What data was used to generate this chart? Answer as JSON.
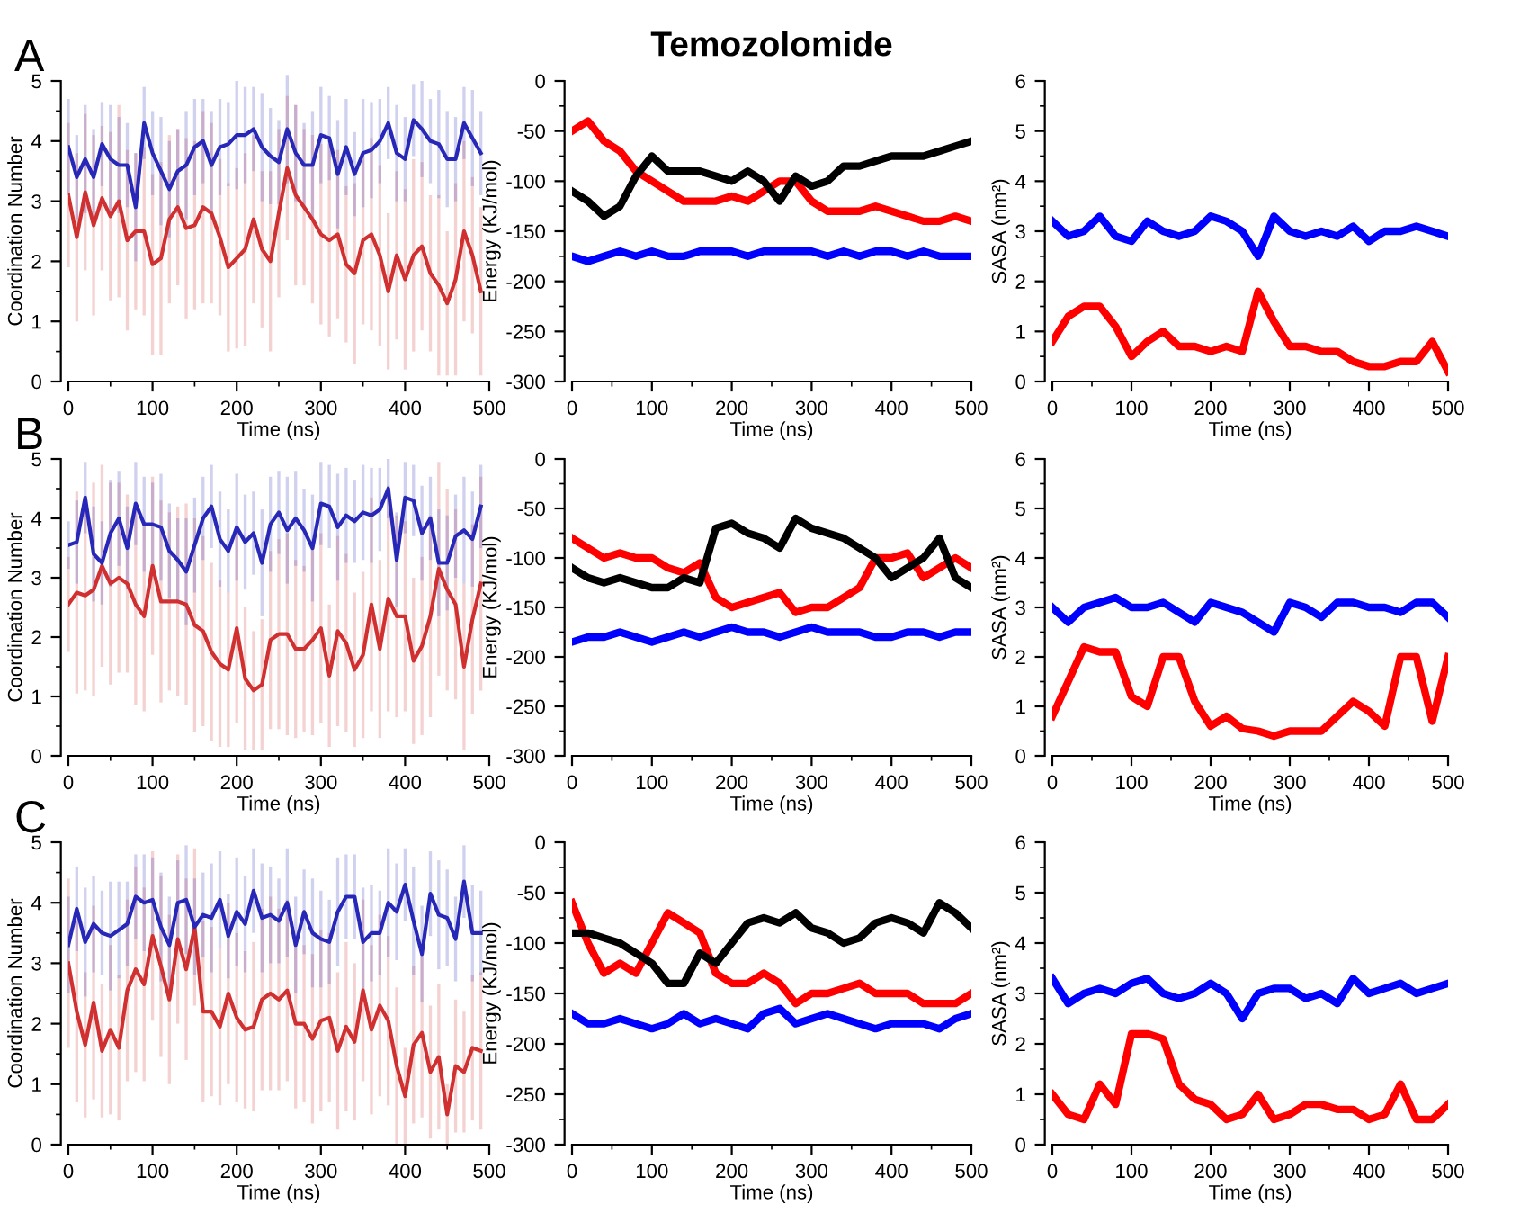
{
  "chart_data": [
    {
      "type": "line",
      "annotations": [
        "A"
      ],
      "xlabel": "Time (ns)",
      "ylabel": "Coordination Number",
      "xlim": [
        0,
        500
      ],
      "ylim": [
        0,
        5
      ],
      "xticks": [
        0,
        100,
        200,
        300,
        400,
        500
      ],
      "yticks": [
        0,
        1,
        2,
        3,
        4,
        5
      ],
      "x": [
        0,
        10,
        20,
        30,
        40,
        50,
        60,
        70,
        80,
        90,
        100,
        110,
        120,
        130,
        140,
        150,
        160,
        170,
        180,
        190,
        200,
        210,
        220,
        230,
        240,
        250,
        260,
        270,
        280,
        290,
        300,
        310,
        320,
        330,
        340,
        350,
        360,
        370,
        380,
        390,
        400,
        410,
        420,
        430,
        440,
        450,
        460,
        470,
        480,
        490
      ],
      "series": [
        {
          "color": "#d03030",
          "values": [
            3.1,
            2.4,
            3.15,
            2.6,
            3.05,
            2.75,
            3.0,
            2.35,
            2.5,
            2.5,
            1.95,
            2.05,
            2.7,
            2.9,
            2.55,
            2.6,
            2.9,
            2.8,
            2.4,
            1.9,
            2.05,
            2.2,
            2.7,
            2.2,
            2.0,
            2.8,
            3.55,
            3.1,
            2.9,
            2.7,
            2.45,
            2.35,
            2.45,
            1.95,
            1.8,
            2.35,
            2.45,
            2.1,
            1.5,
            2.1,
            1.7,
            2.1,
            2.25,
            1.8,
            1.6,
            1.3,
            1.7,
            2.5,
            2.1,
            1.5
          ],
          "errors": [
            1.2,
            1.4,
            1.3,
            1.5,
            1.2,
            1.4,
            1.6,
            1.5,
            1.3,
            1.4,
            1.5,
            1.6,
            1.4,
            1.3,
            1.5,
            1.4,
            1.6,
            1.5,
            1.3,
            1.4,
            1.5,
            1.6,
            1.4,
            1.3,
            1.5,
            1.4,
            1.2,
            1.5,
            1.3,
            1.4,
            1.5,
            1.6,
            1.4,
            1.3,
            1.5,
            1.4,
            1.6,
            1.5,
            1.3,
            1.4,
            1.5,
            1.6,
            1.4,
            1.3,
            1.5,
            1.2,
            1.6,
            1.5,
            1.3,
            1.4
          ]
        },
        {
          "color": "#2828b8",
          "values": [
            3.9,
            3.4,
            3.7,
            3.4,
            3.95,
            3.7,
            3.6,
            3.6,
            2.9,
            4.3,
            3.8,
            3.5,
            3.2,
            3.5,
            3.6,
            3.9,
            4.0,
            3.6,
            3.9,
            3.95,
            4.1,
            4.1,
            4.2,
            3.9,
            3.75,
            3.65,
            4.2,
            3.8,
            3.6,
            3.6,
            4.1,
            4.05,
            3.45,
            3.9,
            3.45,
            3.8,
            3.85,
            4.0,
            4.3,
            3.8,
            3.7,
            4.35,
            4.2,
            4.0,
            3.95,
            3.7,
            3.7,
            4.3,
            4.05,
            3.8
          ],
          "errors": [
            0.8,
            0.7,
            0.9,
            0.8,
            0.7,
            0.9,
            0.8,
            0.7,
            0.9,
            0.6,
            0.7,
            0.9,
            0.8,
            0.7,
            0.9,
            0.8,
            0.7,
            0.9,
            0.8,
            0.7,
            0.9,
            0.8,
            0.7,
            0.9,
            0.8,
            0.7,
            0.9,
            0.8,
            0.7,
            0.9,
            0.8,
            0.7,
            0.9,
            0.8,
            0.7,
            0.9,
            0.8,
            0.7,
            0.6,
            0.8,
            0.7,
            0.6,
            0.8,
            0.7,
            0.9,
            0.8,
            0.7,
            0.6,
            0.8,
            0.7
          ]
        }
      ]
    },
    {
      "type": "line",
      "title": "Temozolomide",
      "xlabel": "Time (ns)",
      "ylabel": "Energy (KJ/mol)",
      "xlim": [
        0,
        500
      ],
      "ylim": [
        -300,
        0
      ],
      "xticks": [
        0,
        100,
        200,
        300,
        400,
        500
      ],
      "yticks": [
        -300,
        -250,
        -200,
        -150,
        -100,
        -50,
        0
      ],
      "x": [
        0,
        20,
        40,
        60,
        80,
        100,
        120,
        140,
        160,
        180,
        200,
        220,
        240,
        260,
        280,
        300,
        320,
        340,
        360,
        380,
        400,
        420,
        440,
        460,
        480,
        500
      ],
      "series": [
        {
          "color": "#0000ff",
          "values": [
            -175,
            -180,
            -175,
            -170,
            -175,
            -170,
            -175,
            -175,
            -170,
            -170,
            -170,
            -175,
            -170,
            -170,
            -170,
            -170,
            -175,
            -170,
            -175,
            -170,
            -170,
            -175,
            -170,
            -175,
            -175,
            -175
          ]
        },
        {
          "color": "#ff0000",
          "values": [
            -50,
            -40,
            -60,
            -70,
            -90,
            -100,
            -110,
            -120,
            -120,
            -120,
            -115,
            -120,
            -110,
            -100,
            -100,
            -120,
            -130,
            -130,
            -130,
            -125,
            -130,
            -135,
            -140,
            -140,
            -135,
            -140
          ]
        },
        {
          "color": "#000000",
          "values": [
            -110,
            -120,
            -135,
            -125,
            -95,
            -75,
            -90,
            -90,
            -90,
            -95,
            -100,
            -90,
            -100,
            -120,
            -95,
            -105,
            -100,
            -85,
            -85,
            -80,
            -75,
            -75,
            -75,
            -70,
            -65,
            -60
          ]
        }
      ]
    },
    {
      "type": "line",
      "xlabel": "Time (ns)",
      "ylabel": "SASA (nm²)",
      "xlim": [
        0,
        500
      ],
      "ylim": [
        0,
        6
      ],
      "xticks": [
        0,
        100,
        200,
        300,
        400,
        500
      ],
      "yticks": [
        0,
        1,
        2,
        3,
        4,
        5,
        6
      ],
      "x": [
        0,
        20,
        40,
        60,
        80,
        100,
        120,
        140,
        160,
        180,
        200,
        220,
        240,
        260,
        280,
        300,
        320,
        340,
        360,
        380,
        400,
        420,
        440,
        460,
        480,
        500
      ],
      "series": [
        {
          "color": "#0000ff",
          "values": [
            3.2,
            2.9,
            3.0,
            3.3,
            2.9,
            2.8,
            3.2,
            3.0,
            2.9,
            3.0,
            3.3,
            3.2,
            3.0,
            2.5,
            3.3,
            3.0,
            2.9,
            3.0,
            2.9,
            3.1,
            2.8,
            3.0,
            3.0,
            3.1,
            3.0,
            2.9
          ]
        },
        {
          "color": "#ff0000",
          "values": [
            0.8,
            1.3,
            1.5,
            1.5,
            1.1,
            0.5,
            0.8,
            1.0,
            0.7,
            0.7,
            0.6,
            0.7,
            0.6,
            1.8,
            1.2,
            0.7,
            0.7,
            0.6,
            0.6,
            0.4,
            0.3,
            0.3,
            0.4,
            0.4,
            0.8,
            0.2
          ]
        }
      ]
    },
    {
      "type": "line",
      "annotations": [
        "B"
      ],
      "xlabel": "Time (ns)",
      "ylabel": "Coordination Number",
      "xlim": [
        0,
        500
      ],
      "ylim": [
        0,
        5
      ],
      "xticks": [
        0,
        100,
        200,
        300,
        400,
        500
      ],
      "yticks": [
        0,
        1,
        2,
        3,
        4,
        5
      ],
      "x": [
        0,
        10,
        20,
        30,
        40,
        50,
        60,
        70,
        80,
        90,
        100,
        110,
        120,
        130,
        140,
        150,
        160,
        170,
        180,
        190,
        200,
        210,
        220,
        230,
        240,
        250,
        260,
        270,
        280,
        290,
        300,
        310,
        320,
        330,
        340,
        350,
        360,
        370,
        380,
        390,
        400,
        410,
        420,
        430,
        440,
        450,
        460,
        470,
        480,
        490
      ],
      "series": [
        {
          "color": "#d03030",
          "values": [
            2.55,
            2.75,
            2.7,
            2.8,
            3.2,
            2.9,
            3.0,
            2.9,
            2.55,
            2.35,
            3.2,
            2.6,
            2.6,
            2.6,
            2.55,
            2.2,
            2.1,
            1.75,
            1.55,
            1.45,
            2.15,
            1.3,
            1.1,
            1.2,
            1.95,
            2.05,
            2.05,
            1.8,
            1.8,
            1.95,
            2.15,
            1.35,
            2.1,
            1.9,
            1.45,
            1.7,
            2.55,
            1.8,
            2.65,
            2.35,
            2.35,
            1.6,
            1.85,
            2.35,
            3.15,
            2.8,
            2.55,
            1.5,
            2.3,
            2.9
          ],
          "errors": [
            0.8,
            1.7,
            1.6,
            1.8,
            1.7,
            1.7,
            1.6,
            1.5,
            1.7,
            1.6,
            1.5,
            1.7,
            1.5,
            1.6,
            1.7,
            1.8,
            1.6,
            1.5,
            1.4,
            1.3,
            1.6,
            1.2,
            1.0,
            1.1,
            1.5,
            1.6,
            1.7,
            1.5,
            1.4,
            1.6,
            1.6,
            1.2,
            1.6,
            1.5,
            1.3,
            1.4,
            1.8,
            1.5,
            1.9,
            1.7,
            1.6,
            1.4,
            1.5,
            1.7,
            1.8,
            1.7,
            1.6,
            1.4,
            1.6,
            1.8
          ]
        },
        {
          "color": "#2828b8",
          "values": [
            3.55,
            3.6,
            4.35,
            3.4,
            3.25,
            3.75,
            4.0,
            3.5,
            4.25,
            3.9,
            3.9,
            3.85,
            3.45,
            3.3,
            3.1,
            3.55,
            4.0,
            4.2,
            3.65,
            3.45,
            3.85,
            3.6,
            3.75,
            3.25,
            3.9,
            4.1,
            3.8,
            4.0,
            3.8,
            3.5,
            4.25,
            4.2,
            3.85,
            4.05,
            3.95,
            4.1,
            4.05,
            4.15,
            4.5,
            3.3,
            4.35,
            4.3,
            3.75,
            4.0,
            3.25,
            3.25,
            3.7,
            3.8,
            3.65,
            4.2
          ],
          "errors": [
            0.4,
            0.7,
            0.6,
            0.8,
            0.7,
            0.9,
            0.8,
            0.7,
            0.7,
            0.8,
            0.7,
            0.9,
            0.8,
            0.7,
            0.9,
            0.8,
            0.7,
            0.7,
            0.8,
            0.7,
            0.9,
            0.8,
            0.7,
            0.9,
            0.8,
            0.7,
            0.9,
            0.8,
            0.7,
            0.9,
            0.7,
            0.7,
            0.9,
            0.8,
            0.7,
            0.8,
            0.8,
            0.7,
            0.5,
            0.8,
            0.6,
            0.6,
            0.8,
            0.7,
            0.9,
            0.8,
            0.7,
            0.9,
            0.8,
            0.7
          ]
        }
      ]
    },
    {
      "type": "line",
      "xlabel": "Time (ns)",
      "ylabel": "Energy (KJ/mol)",
      "xlim": [
        0,
        500
      ],
      "ylim": [
        -300,
        0
      ],
      "xticks": [
        0,
        100,
        200,
        300,
        400,
        500
      ],
      "yticks": [
        -300,
        -250,
        -200,
        -150,
        -100,
        -50,
        0
      ],
      "x": [
        0,
        20,
        40,
        60,
        80,
        100,
        120,
        140,
        160,
        180,
        200,
        220,
        240,
        260,
        280,
        300,
        320,
        340,
        360,
        380,
        400,
        420,
        440,
        460,
        480,
        500
      ],
      "series": [
        {
          "color": "#0000ff",
          "values": [
            -185,
            -180,
            -180,
            -175,
            -180,
            -185,
            -180,
            -175,
            -180,
            -175,
            -170,
            -175,
            -175,
            -180,
            -175,
            -170,
            -175,
            -175,
            -175,
            -180,
            -180,
            -175,
            -175,
            -180,
            -175,
            -175
          ]
        },
        {
          "color": "#ff0000",
          "values": [
            -80,
            -90,
            -100,
            -95,
            -100,
            -100,
            -110,
            -115,
            -105,
            -140,
            -150,
            -145,
            -140,
            -135,
            -155,
            -150,
            -150,
            -140,
            -130,
            -100,
            -100,
            -95,
            -120,
            -110,
            -100,
            -110
          ]
        },
        {
          "color": "#000000",
          "values": [
            -110,
            -120,
            -125,
            -120,
            -125,
            -130,
            -130,
            -120,
            -125,
            -70,
            -65,
            -75,
            -80,
            -90,
            -60,
            -70,
            -75,
            -80,
            -90,
            -100,
            -120,
            -110,
            -100,
            -80,
            -120,
            -130
          ]
        }
      ]
    },
    {
      "type": "line",
      "xlabel": "Time (ns)",
      "ylabel": "SASA (nm²)",
      "xlim": [
        0,
        500
      ],
      "ylim": [
        0,
        6
      ],
      "xticks": [
        0,
        100,
        200,
        300,
        400,
        500
      ],
      "yticks": [
        0,
        1,
        2,
        3,
        4,
        5,
        6
      ],
      "x": [
        0,
        20,
        40,
        60,
        80,
        100,
        120,
        140,
        160,
        180,
        200,
        220,
        240,
        260,
        280,
        300,
        320,
        340,
        360,
        380,
        400,
        420,
        440,
        460,
        480,
        500
      ],
      "series": [
        {
          "color": "#0000ff",
          "values": [
            3.0,
            2.7,
            3.0,
            3.1,
            3.2,
            3.0,
            3.0,
            3.1,
            2.9,
            2.7,
            3.1,
            3.0,
            2.9,
            2.7,
            2.5,
            3.1,
            3.0,
            2.8,
            3.1,
            3.1,
            3.0,
            3.0,
            2.9,
            3.1,
            3.1,
            2.8
          ]
        },
        {
          "color": "#ff0000",
          "values": [
            0.8,
            1.5,
            2.2,
            2.1,
            2.1,
            1.2,
            1.0,
            2.0,
            2.0,
            1.1,
            0.6,
            0.8,
            0.55,
            0.5,
            0.4,
            0.5,
            0.5,
            0.5,
            0.8,
            1.1,
            0.9,
            0.6,
            2.0,
            2.0,
            0.7,
            2.0
          ]
        }
      ]
    },
    {
      "type": "line",
      "annotations": [
        "C"
      ],
      "xlabel": "Time (ns)",
      "ylabel": "Coordination Number",
      "xlim": [
        0,
        500
      ],
      "ylim": [
        0,
        5
      ],
      "xticks": [
        0,
        100,
        200,
        300,
        400,
        500
      ],
      "yticks": [
        0,
        1,
        2,
        3,
        4,
        5
      ],
      "x": [
        0,
        10,
        20,
        30,
        40,
        50,
        60,
        70,
        80,
        90,
        100,
        110,
        120,
        130,
        140,
        150,
        160,
        170,
        180,
        190,
        200,
        210,
        220,
        230,
        240,
        250,
        260,
        270,
        280,
        290,
        300,
        310,
        320,
        330,
        340,
        350,
        360,
        370,
        380,
        390,
        400,
        410,
        420,
        430,
        440,
        450,
        460,
        470,
        480,
        490
      ],
      "series": [
        {
          "color": "#d03030",
          "values": [
            3.0,
            2.2,
            1.65,
            2.35,
            1.55,
            1.9,
            1.6,
            2.55,
            2.9,
            2.65,
            3.45,
            2.95,
            2.4,
            3.4,
            2.9,
            3.6,
            2.2,
            2.2,
            1.95,
            2.5,
            2.1,
            1.9,
            1.95,
            2.4,
            2.5,
            2.4,
            2.55,
            2.0,
            2.0,
            1.75,
            2.05,
            2.1,
            1.55,
            1.95,
            1.7,
            2.55,
            1.9,
            2.3,
            2.05,
            1.3,
            0.8,
            1.65,
            1.85,
            1.2,
            1.45,
            0.5,
            1.3,
            1.2,
            1.6,
            1.55
          ],
          "errors": [
            1.4,
            1.5,
            1.2,
            1.6,
            1.1,
            1.4,
            1.2,
            1.5,
            1.7,
            1.6,
            1.4,
            1.5,
            1.4,
            1.4,
            1.5,
            1.3,
            1.5,
            1.4,
            1.3,
            1.5,
            1.4,
            1.3,
            1.4,
            1.5,
            1.6,
            1.5,
            1.5,
            1.4,
            1.3,
            1.4,
            1.5,
            1.4,
            1.3,
            1.4,
            1.3,
            1.5,
            1.4,
            1.5,
            1.4,
            1.3,
            0.8,
            1.3,
            1.4,
            1.1,
            1.2,
            0.5,
            1.1,
            1.0,
            1.2,
            1.3
          ]
        },
        {
          "color": "#2828b8",
          "values": [
            3.3,
            3.9,
            3.35,
            3.65,
            3.5,
            3.45,
            3.55,
            3.65,
            4.1,
            4.0,
            4.05,
            3.6,
            3.3,
            4.0,
            4.05,
            3.6,
            3.8,
            3.75,
            4.05,
            3.45,
            3.85,
            3.65,
            4.2,
            3.75,
            3.8,
            3.7,
            4.0,
            3.3,
            3.85,
            3.5,
            3.4,
            3.35,
            3.85,
            4.1,
            4.1,
            3.35,
            3.5,
            3.5,
            4.0,
            3.85,
            4.3,
            3.7,
            3.15,
            4.15,
            3.8,
            3.75,
            3.4,
            4.35,
            3.5,
            3.5
          ],
          "errors": [
            0.8,
            0.7,
            0.9,
            0.8,
            0.7,
            0.9,
            0.8,
            0.7,
            0.7,
            0.8,
            0.7,
            0.9,
            0.8,
            0.7,
            0.9,
            0.8,
            0.7,
            0.9,
            0.8,
            0.7,
            0.9,
            0.8,
            0.7,
            0.9,
            0.8,
            0.7,
            0.9,
            0.8,
            0.7,
            0.9,
            0.8,
            0.7,
            0.9,
            0.7,
            0.7,
            0.9,
            0.8,
            0.7,
            0.9,
            0.8,
            0.6,
            0.9,
            0.8,
            0.7,
            0.9,
            0.8,
            0.7,
            0.6,
            0.8,
            0.7
          ]
        }
      ]
    },
    {
      "type": "line",
      "xlabel": "Time (ns)",
      "ylabel": "Energy (KJ/mol)",
      "xlim": [
        0,
        500
      ],
      "ylim": [
        -300,
        0
      ],
      "xticks": [
        0,
        100,
        200,
        300,
        400,
        500
      ],
      "yticks": [
        -300,
        -250,
        -200,
        -150,
        -100,
        -50,
        0
      ],
      "x": [
        0,
        20,
        40,
        60,
        80,
        100,
        120,
        140,
        160,
        180,
        200,
        220,
        240,
        260,
        280,
        300,
        320,
        340,
        360,
        380,
        400,
        420,
        440,
        460,
        480,
        500
      ],
      "series": [
        {
          "color": "#0000ff",
          "values": [
            -170,
            -180,
            -180,
            -175,
            -180,
            -185,
            -180,
            -170,
            -180,
            -175,
            -180,
            -185,
            -170,
            -165,
            -180,
            -175,
            -170,
            -175,
            -180,
            -185,
            -180,
            -180,
            -180,
            -185,
            -175,
            -170
          ]
        },
        {
          "color": "#ff0000",
          "values": [
            -60,
            -100,
            -130,
            -120,
            -130,
            -100,
            -70,
            -80,
            -90,
            -130,
            -140,
            -140,
            -130,
            -140,
            -160,
            -150,
            -150,
            -145,
            -140,
            -150,
            -150,
            -150,
            -160,
            -160,
            -160,
            -150
          ]
        },
        {
          "color": "#000000",
          "values": [
            -90,
            -90,
            -95,
            -100,
            -110,
            -120,
            -140,
            -140,
            -110,
            -120,
            -100,
            -80,
            -75,
            -80,
            -70,
            -85,
            -90,
            -100,
            -95,
            -80,
            -75,
            -80,
            -90,
            -60,
            -70,
            -85
          ]
        }
      ]
    },
    {
      "type": "line",
      "xlabel": "Time (ns)",
      "ylabel": "SASA (nm²)",
      "xlim": [
        0,
        500
      ],
      "ylim": [
        0,
        6
      ],
      "xticks": [
        0,
        100,
        200,
        300,
        400,
        500
      ],
      "yticks": [
        0,
        1,
        2,
        3,
        4,
        5,
        6
      ],
      "x": [
        0,
        20,
        40,
        60,
        80,
        100,
        120,
        140,
        160,
        180,
        200,
        220,
        240,
        260,
        280,
        300,
        320,
        340,
        360,
        380,
        400,
        420,
        440,
        460,
        480,
        500
      ],
      "series": [
        {
          "color": "#0000ff",
          "values": [
            3.3,
            2.8,
            3.0,
            3.1,
            3.0,
            3.2,
            3.3,
            3.0,
            2.9,
            3.0,
            3.2,
            3.0,
            2.5,
            3.0,
            3.1,
            3.1,
            2.9,
            3.0,
            2.8,
            3.3,
            3.0,
            3.1,
            3.2,
            3.0,
            3.1,
            3.2
          ]
        },
        {
          "color": "#ff0000",
          "values": [
            1.0,
            0.6,
            0.5,
            1.2,
            0.8,
            2.2,
            2.2,
            2.1,
            1.2,
            0.9,
            0.8,
            0.5,
            0.6,
            1.0,
            0.5,
            0.6,
            0.8,
            0.8,
            0.7,
            0.7,
            0.5,
            0.6,
            1.2,
            0.5,
            0.5,
            0.8
          ]
        }
      ]
    }
  ]
}
